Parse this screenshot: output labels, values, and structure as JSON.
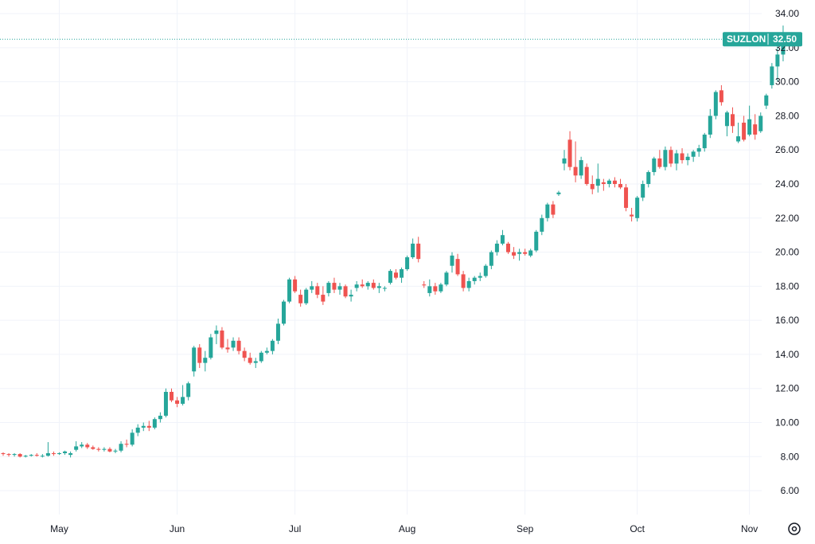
{
  "chart_data": {
    "type": "candlestick",
    "symbol": "SUZLON",
    "last_price": 32.5,
    "last_price_label": "32.50",
    "ylim": [
      4.6,
      34.8
    ],
    "y_ticks": [
      "6.00",
      "8.00",
      "10.00",
      "12.00",
      "14.00",
      "16.00",
      "18.00",
      "20.00",
      "22.00",
      "24.00",
      "26.00",
      "28.00",
      "30.00",
      "32.00",
      "34.00"
    ],
    "x_ticks": [
      {
        "label": "May",
        "index": 10
      },
      {
        "label": "Jun",
        "index": 31
      },
      {
        "label": "Jul",
        "index": 52
      },
      {
        "label": "Aug",
        "index": 72
      },
      {
        "label": "Sep",
        "index": 93
      },
      {
        "label": "Oct",
        "index": 113
      },
      {
        "label": "Nov",
        "index": 133
      }
    ],
    "grid": true,
    "colors": {
      "up": "#26a69a",
      "down": "#ef5350",
      "grid": "#f0f3fa",
      "axis_text": "#131722",
      "price_line": "#26a69a"
    },
    "ohlc": [
      [
        8.2,
        8.25,
        8.05,
        8.15
      ],
      [
        8.15,
        8.2,
        8.0,
        8.1
      ],
      [
        8.1,
        8.2,
        8.0,
        8.15
      ],
      [
        8.15,
        8.2,
        7.95,
        8.0
      ],
      [
        8.0,
        8.1,
        7.95,
        8.05
      ],
      [
        8.05,
        8.15,
        8.0,
        8.1
      ],
      [
        8.1,
        8.2,
        8.0,
        8.05
      ],
      [
        8.05,
        8.15,
        7.95,
        8.05
      ],
      [
        8.05,
        8.85,
        8.0,
        8.2
      ],
      [
        8.2,
        8.3,
        8.05,
        8.15
      ],
      [
        8.15,
        8.25,
        8.1,
        8.2
      ],
      [
        8.2,
        8.35,
        8.1,
        8.3
      ],
      [
        8.1,
        8.3,
        7.95,
        8.2
      ],
      [
        8.4,
        8.9,
        8.3,
        8.6
      ],
      [
        8.6,
        8.85,
        8.5,
        8.7
      ],
      [
        8.7,
        8.8,
        8.45,
        8.55
      ],
      [
        8.55,
        8.65,
        8.4,
        8.45
      ],
      [
        8.45,
        8.55,
        8.3,
        8.4
      ],
      [
        8.4,
        8.55,
        8.3,
        8.45
      ],
      [
        8.45,
        8.55,
        8.25,
        8.3
      ],
      [
        8.3,
        8.45,
        8.2,
        8.35
      ],
      [
        8.35,
        8.9,
        8.25,
        8.75
      ],
      [
        8.75,
        9.0,
        8.55,
        8.7
      ],
      [
        8.7,
        9.6,
        8.6,
        9.4
      ],
      [
        9.4,
        9.9,
        9.2,
        9.7
      ],
      [
        9.7,
        10.0,
        9.5,
        9.8
      ],
      [
        9.8,
        10.1,
        9.5,
        9.7
      ],
      [
        9.7,
        10.3,
        9.6,
        10.2
      ],
      [
        10.2,
        10.6,
        10.0,
        10.4
      ],
      [
        10.4,
        12.0,
        10.3,
        11.8
      ],
      [
        11.8,
        12.0,
        11.2,
        11.3
      ],
      [
        11.3,
        11.5,
        10.9,
        11.1
      ],
      [
        11.1,
        12.2,
        11.0,
        11.5
      ],
      [
        11.5,
        12.4,
        11.3,
        12.3
      ],
      [
        13.0,
        14.5,
        12.7,
        14.4
      ],
      [
        14.4,
        14.6,
        13.2,
        13.5
      ],
      [
        13.5,
        14.2,
        13.0,
        13.8
      ],
      [
        13.8,
        15.2,
        13.7,
        15.0
      ],
      [
        15.2,
        15.7,
        14.6,
        15.4
      ],
      [
        15.4,
        15.6,
        14.3,
        14.4
      ],
      [
        14.4,
        14.9,
        14.1,
        14.3
      ],
      [
        14.4,
        15.0,
        14.2,
        14.8
      ],
      [
        14.8,
        15.0,
        14.0,
        14.2
      ],
      [
        14.2,
        14.4,
        13.6,
        13.8
      ],
      [
        13.8,
        14.1,
        13.4,
        13.5
      ],
      [
        13.5,
        13.8,
        13.2,
        13.6
      ],
      [
        13.6,
        14.2,
        13.5,
        14.1
      ],
      [
        14.1,
        14.4,
        14.0,
        14.2
      ],
      [
        14.2,
        14.9,
        14.0,
        14.8
      ],
      [
        14.8,
        16.1,
        14.6,
        15.8
      ],
      [
        15.8,
        17.2,
        15.7,
        17.1
      ],
      [
        17.1,
        18.5,
        17.0,
        18.4
      ],
      [
        18.4,
        18.6,
        17.6,
        17.7
      ],
      [
        17.5,
        17.8,
        16.8,
        17.0
      ],
      [
        17.0,
        17.9,
        16.9,
        17.8
      ],
      [
        17.8,
        18.3,
        17.6,
        18.0
      ],
      [
        18.0,
        18.2,
        17.3,
        17.5
      ],
      [
        17.5,
        18.0,
        16.9,
        17.1
      ],
      [
        17.6,
        18.3,
        17.4,
        18.2
      ],
      [
        18.2,
        18.5,
        17.6,
        17.8
      ],
      [
        17.8,
        18.2,
        17.5,
        18.0
      ],
      [
        18.0,
        18.1,
        17.3,
        17.4
      ],
      [
        17.4,
        17.8,
        17.1,
        17.5
      ],
      [
        17.9,
        18.3,
        17.7,
        18.1
      ],
      [
        18.1,
        18.4,
        17.9,
        18.0
      ],
      [
        18.0,
        18.3,
        17.8,
        18.2
      ],
      [
        18.2,
        18.4,
        17.8,
        17.9
      ],
      [
        17.9,
        18.2,
        17.6,
        18.0
      ],
      [
        17.9,
        18.0,
        17.7,
        17.9
      ],
      [
        18.2,
        19.0,
        18.1,
        18.9
      ],
      [
        18.8,
        19.0,
        18.4,
        18.5
      ],
      [
        18.5,
        19.1,
        18.2,
        19.0
      ],
      [
        19.0,
        19.8,
        18.9,
        19.7
      ],
      [
        19.7,
        20.8,
        19.6,
        20.5
      ],
      [
        20.5,
        20.9,
        19.4,
        19.6
      ],
      [
        18.1,
        18.3,
        17.9,
        18.05
      ],
      [
        17.6,
        18.4,
        17.4,
        18.0
      ],
      [
        18.0,
        18.2,
        17.5,
        17.7
      ],
      [
        17.7,
        18.2,
        17.6,
        18.1
      ],
      [
        18.1,
        18.9,
        18.0,
        18.8
      ],
      [
        19.2,
        20.0,
        18.8,
        19.8
      ],
      [
        19.6,
        19.9,
        18.6,
        18.7
      ],
      [
        18.7,
        18.9,
        17.7,
        17.9
      ],
      [
        17.9,
        18.5,
        17.7,
        18.3
      ],
      [
        18.3,
        18.6,
        18.1,
        18.5
      ],
      [
        18.5,
        18.8,
        18.3,
        18.6
      ],
      [
        18.6,
        19.3,
        18.5,
        19.2
      ],
      [
        19.2,
        20.1,
        19.0,
        20.0
      ],
      [
        20.0,
        20.7,
        19.8,
        20.5
      ],
      [
        20.5,
        21.3,
        20.4,
        21.0
      ],
      [
        20.5,
        20.6,
        19.9,
        20.0
      ],
      [
        20.0,
        20.3,
        19.6,
        19.8
      ],
      [
        19.9,
        20.2,
        19.5,
        20.0
      ],
      [
        20.0,
        20.2,
        19.8,
        19.9
      ],
      [
        19.8,
        20.2,
        19.7,
        20.1
      ],
      [
        20.1,
        21.3,
        20.0,
        21.2
      ],
      [
        21.2,
        22.2,
        21.0,
        22.0
      ],
      [
        22.0,
        22.9,
        21.8,
        22.8
      ],
      [
        22.8,
        23.0,
        22.0,
        22.2
      ],
      [
        23.4,
        23.6,
        23.3,
        23.5
      ],
      [
        25.2,
        26.0,
        24.8,
        25.5
      ],
      [
        26.6,
        27.1,
        24.8,
        25.0
      ],
      [
        25.0,
        26.5,
        24.1,
        24.5
      ],
      [
        24.5,
        25.6,
        24.3,
        25.4
      ],
      [
        25.0,
        25.2,
        23.9,
        24.0
      ],
      [
        24.0,
        24.5,
        23.4,
        23.7
      ],
      [
        23.9,
        25.2,
        23.5,
        24.3
      ],
      [
        24.1,
        24.3,
        23.6,
        24.0
      ],
      [
        24.0,
        24.3,
        23.8,
        24.2
      ],
      [
        24.2,
        24.4,
        23.8,
        24.0
      ],
      [
        24.0,
        24.3,
        23.7,
        23.8
      ],
      [
        23.8,
        24.0,
        22.4,
        22.6
      ],
      [
        22.2,
        22.6,
        21.8,
        22.1
      ],
      [
        22.0,
        23.3,
        21.8,
        23.2
      ],
      [
        23.2,
        24.2,
        23.0,
        24.0
      ],
      [
        24.0,
        24.8,
        23.8,
        24.7
      ],
      [
        24.7,
        25.6,
        24.5,
        25.5
      ],
      [
        25.5,
        26.0,
        24.9,
        25.0
      ],
      [
        25.0,
        26.2,
        24.8,
        26.0
      ],
      [
        26.0,
        26.2,
        25.0,
        25.2
      ],
      [
        25.2,
        26.0,
        24.8,
        25.8
      ],
      [
        25.8,
        26.1,
        25.2,
        25.4
      ],
      [
        25.4,
        25.8,
        25.1,
        25.6
      ],
      [
        25.6,
        26.0,
        25.3,
        25.9
      ],
      [
        25.9,
        26.3,
        25.6,
        26.1
      ],
      [
        26.1,
        27.0,
        25.9,
        26.9
      ],
      [
        26.9,
        28.4,
        26.7,
        28.0
      ],
      [
        28.0,
        29.5,
        27.8,
        29.4
      ],
      [
        29.5,
        29.8,
        28.6,
        28.8
      ],
      [
        27.4,
        28.3,
        26.8,
        28.2
      ],
      [
        28.1,
        28.5,
        27.0,
        27.4
      ],
      [
        26.5,
        27.6,
        26.4,
        26.8
      ],
      [
        27.6,
        28.0,
        26.5,
        26.6
      ],
      [
        26.9,
        28.6,
        26.8,
        27.8
      ],
      [
        27.5,
        28.1,
        26.6,
        26.9
      ],
      [
        27.1,
        28.2,
        27.0,
        28.0
      ],
      [
        28.6,
        29.3,
        28.4,
        29.2
      ],
      [
        29.8,
        31.1,
        29.6,
        30.9
      ],
      [
        30.9,
        32.1,
        30.0,
        31.6
      ],
      [
        31.6,
        33.3,
        31.2,
        32.5
      ]
    ]
  }
}
